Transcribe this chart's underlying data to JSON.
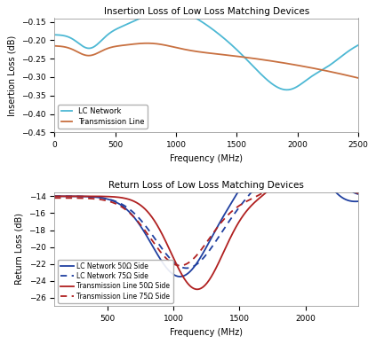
{
  "title1": "Insertion Loss of Low Loss Matching Devices",
  "title2": "Return Loss of Low Loss Matching Devices",
  "xlabel": "Frequency (MHz)",
  "ylabel1": "Insertion Loss (dB)",
  "ylabel2": "Return Loss (dB)",
  "lc_color": "#4db8d4",
  "tl_color": "#c87040",
  "blue_color": "#2040a0",
  "red_color": "#b02020",
  "il_lc_legend": "LC Network",
  "il_tl_legend": "Transmission Line",
  "rl_legend": [
    "LC Network 50Ω Side",
    "LC Network 75Ω Side",
    "Transmission Line 50Ω Side",
    "Transmission Line 75Ω Side"
  ],
  "il_xlim": [
    0,
    2500
  ],
  "il_ylim": [
    -0.45,
    -0.14
  ],
  "rl_xlim": [
    100,
    2400
  ],
  "rl_ylim": [
    -27,
    -13.5
  ],
  "bg_color": "#ffffff"
}
